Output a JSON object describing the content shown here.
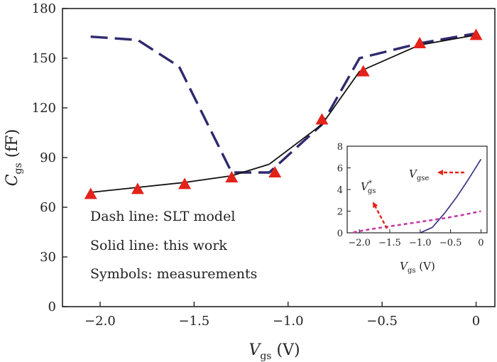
{
  "chart_data": [
    {
      "type": "line",
      "title": "",
      "xlabel": "V",
      "xlabel_sub": "gs",
      "xlabel_unit": " (V)",
      "ylabel": "C",
      "ylabel_sub": "gs",
      "ylabel_unit": " (fF)",
      "xlim": [
        -2.2,
        0.1
      ],
      "ylim": [
        0,
        180
      ],
      "xticks": [
        -2.0,
        -1.5,
        -1.0,
        -0.5,
        0
      ],
      "xtick_labels": [
        "−2.0",
        "−1.5",
        "−1.0",
        "−0.5",
        "0"
      ],
      "yticks": [
        0,
        30,
        60,
        90,
        120,
        150,
        180
      ],
      "ytick_labels": [
        "0",
        "30",
        "60",
        "90",
        "120",
        "150",
        "180"
      ],
      "series": [
        {
          "name": "SLT model",
          "style": "dash",
          "color": "#2e2a6e",
          "x": [
            -2.05,
            -1.8,
            -1.58,
            -1.3,
            -1.1,
            -0.82,
            -0.62,
            -0.3,
            0.0
          ],
          "y": [
            163,
            161,
            145,
            81,
            81,
            110,
            150,
            159,
            165
          ]
        },
        {
          "name": "this work",
          "style": "solid",
          "color": "#111111",
          "x": [
            -2.05,
            -1.8,
            -1.55,
            -1.3,
            -1.1,
            -0.82,
            -0.62,
            -0.3,
            0.0
          ],
          "y": [
            69,
            72,
            75,
            79,
            86,
            110,
            142,
            158,
            164
          ]
        },
        {
          "name": "measurements",
          "style": "markers",
          "marker": "triangle",
          "color": "#e3231a",
          "x": [
            -2.05,
            -1.8,
            -1.55,
            -1.3,
            -1.07,
            -0.82,
            -0.6,
            -0.3,
            0.0
          ],
          "y": [
            68,
            71,
            74,
            78,
            81,
            113,
            142,
            159,
            164
          ]
        }
      ],
      "legend": [
        "Dash line: SLT model",
        "Solid line: this work",
        "Symbols: measurements"
      ]
    },
    {
      "type": "line",
      "title": "",
      "xlabel": "V",
      "xlabel_sub": "gs",
      "xlabel_unit": " (V)",
      "xlim": [
        -2.2,
        0.1
      ],
      "ylim": [
        0,
        8
      ],
      "xticks": [
        -2.0,
        -1.5,
        -1.0,
        -0.5,
        0
      ],
      "xtick_labels": [
        "−2.0",
        "−1.5",
        "−1.0",
        "−0.5",
        "0"
      ],
      "yticks": [
        0,
        2,
        4,
        6,
        8
      ],
      "ytick_labels": [
        "0",
        "2",
        "4",
        "6",
        "8"
      ],
      "series": [
        {
          "name": "V_gse",
          "style": "solid",
          "color": "#2e2a7a",
          "x": [
            -1.0,
            -0.8,
            -0.6,
            -0.4,
            -0.2,
            0.0
          ],
          "y": [
            0.0,
            0.5,
            1.8,
            3.3,
            5.0,
            6.8
          ]
        },
        {
          "name": "V*_gs",
          "style": "dot",
          "color": "#c43ca8",
          "x": [
            -2.1,
            -1.8,
            -1.5,
            -1.2,
            -0.9,
            -0.6,
            -0.3,
            0.0
          ],
          "y": [
            0.05,
            0.35,
            0.6,
            0.85,
            1.1,
            1.35,
            1.65,
            2.0
          ]
        }
      ],
      "annotations": [
        {
          "text": "V",
          "sub": "gse",
          "arrow_color": "#e3231a"
        },
        {
          "text": "V",
          "sup": "*",
          "sub": "gs",
          "arrow_color": "#e3231a"
        }
      ]
    }
  ]
}
